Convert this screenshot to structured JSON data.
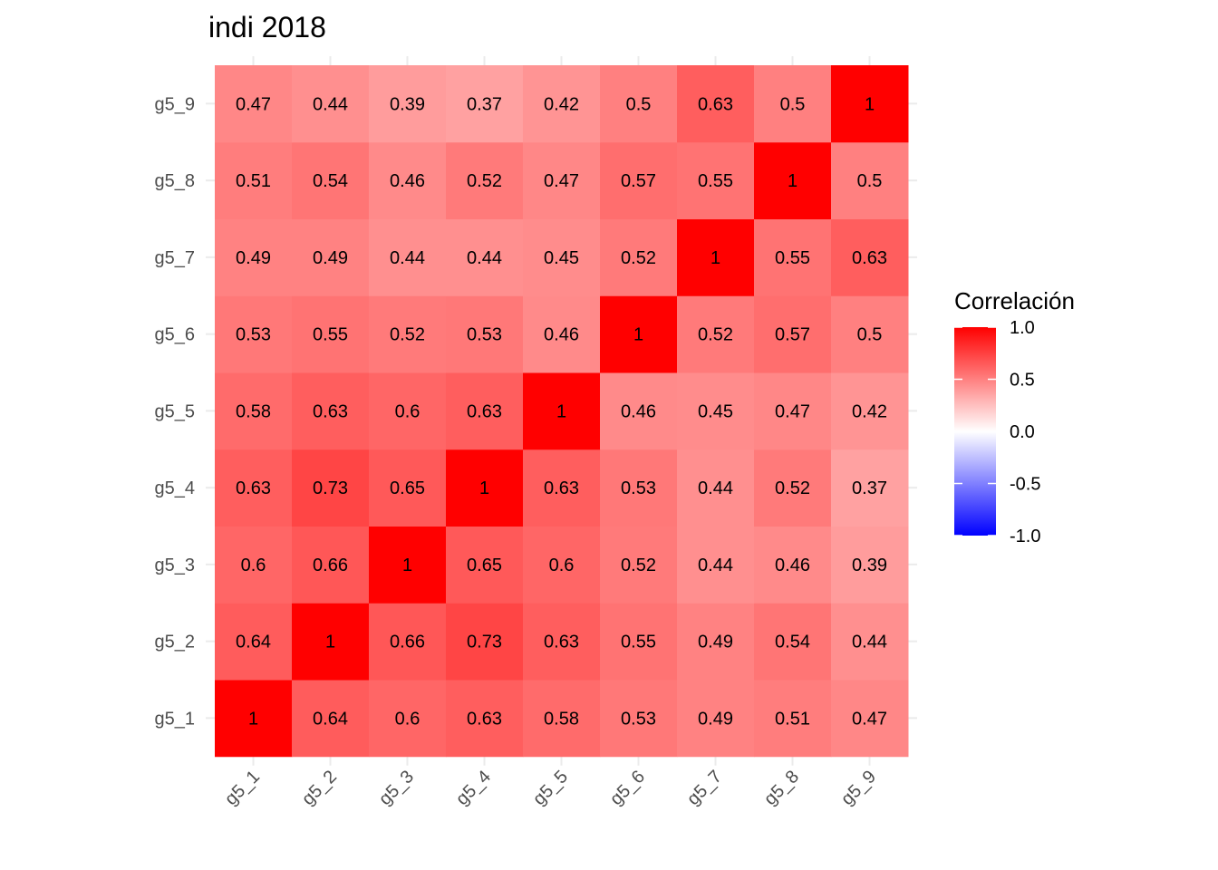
{
  "chart_data": {
    "type": "heatmap",
    "title": "indi 2018",
    "xlabel": "",
    "ylabel": "",
    "x_categories": [
      "g5_1",
      "g5_2",
      "g5_3",
      "g5_4",
      "g5_5",
      "g5_6",
      "g5_7",
      "g5_8",
      "g5_9"
    ],
    "y_categories": [
      "g5_1",
      "g5_2",
      "g5_3",
      "g5_4",
      "g5_5",
      "g5_6",
      "g5_7",
      "g5_8",
      "g5_9"
    ],
    "values": [
      [
        1,
        0.64,
        0.6,
        0.63,
        0.58,
        0.53,
        0.49,
        0.51,
        0.47
      ],
      [
        0.64,
        1,
        0.66,
        0.73,
        0.63,
        0.55,
        0.49,
        0.54,
        0.44
      ],
      [
        0.6,
        0.66,
        1,
        0.65,
        0.6,
        0.52,
        0.44,
        0.46,
        0.39
      ],
      [
        0.63,
        0.73,
        0.65,
        1,
        0.63,
        0.53,
        0.44,
        0.52,
        0.37
      ],
      [
        0.58,
        0.63,
        0.6,
        0.63,
        1,
        0.46,
        0.45,
        0.47,
        0.42
      ],
      [
        0.53,
        0.55,
        0.52,
        0.53,
        0.46,
        1,
        0.52,
        0.57,
        0.5
      ],
      [
        0.49,
        0.49,
        0.44,
        0.44,
        0.45,
        0.52,
        1,
        0.55,
        0.63
      ],
      [
        0.51,
        0.54,
        0.46,
        0.52,
        0.47,
        0.57,
        0.55,
        1,
        0.5
      ],
      [
        0.47,
        0.44,
        0.39,
        0.37,
        0.42,
        0.5,
        0.63,
        0.5,
        1
      ]
    ],
    "color_scale": {
      "low": "#0000ff",
      "mid": "#ffffff",
      "high": "#ff0000",
      "limits": [
        -1,
        1
      ],
      "midpoint": 0
    },
    "legend": {
      "title": "Correlación",
      "ticks": [
        1.0,
        0.5,
        0.0,
        -0.5,
        -1.0
      ],
      "tick_labels": [
        "1.0",
        "0.5",
        "0.0",
        "-0.5",
        "-1.0"
      ],
      "position": "right"
    },
    "grid": true
  }
}
